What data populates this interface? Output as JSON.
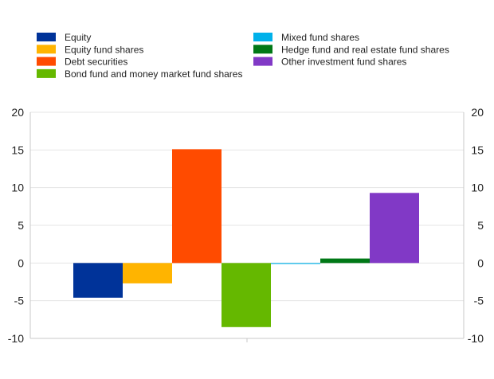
{
  "chart_data": {
    "type": "bar",
    "title": "",
    "xlabel": "",
    "ylabel": "",
    "ylim": [
      -10,
      20
    ],
    "yticks": [
      20,
      15,
      10,
      5,
      0,
      -5,
      -10
    ],
    "grid": true,
    "legend_position": "top",
    "series": [
      {
        "name": "Equity",
        "value": -4.6,
        "color": "#003399"
      },
      {
        "name": "Equity fund shares",
        "value": -2.7,
        "color": "#FFB400"
      },
      {
        "name": "Debt securities",
        "value": 15.1,
        "color": "#FF4B00"
      },
      {
        "name": "Bond fund and money market fund shares",
        "value": -8.5,
        "color": "#65B800"
      },
      {
        "name": "Mixed fund shares",
        "value": -0.1,
        "color": "#00B1EA"
      },
      {
        "name": "Hedge fund and real estate fund shares",
        "value": 0.6,
        "color": "#007816"
      },
      {
        "name": "Other investment fund shares",
        "value": 9.3,
        "color": "#8139C6"
      }
    ]
  }
}
